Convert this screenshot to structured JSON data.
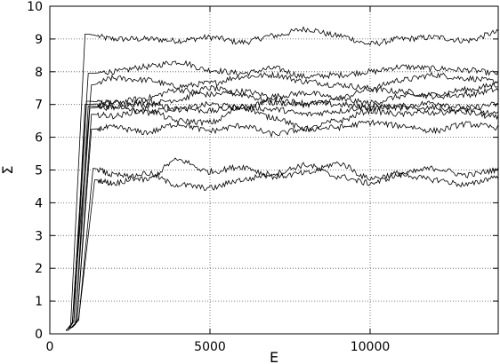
{
  "chart_data": {
    "type": "line",
    "title": "",
    "xlabel": "E",
    "ylabel": "Σ",
    "xlim": [
      0,
      14000
    ],
    "ylim": [
      0,
      10
    ],
    "xticks": [
      0,
      5000,
      10000
    ],
    "xtick_labels": [
      "0",
      "5000",
      "10000"
    ],
    "yticks": [
      0,
      1,
      2,
      3,
      4,
      5,
      6,
      7,
      8,
      9,
      10
    ],
    "ytick_labels": [
      "0",
      "1",
      "2",
      "3",
      "4",
      "5",
      "6",
      "7",
      "8",
      "9",
      "10"
    ],
    "grid": true,
    "grid_style": "dotted",
    "legend": "none",
    "line_color": "#000000",
    "series": [
      {
        "x": [
          500,
          650,
          1100,
          2000,
          3000,
          4000,
          5000,
          6000,
          7000,
          8000,
          9000,
          10000,
          11000,
          12000,
          13000,
          14000
        ],
        "values": [
          0.1,
          0.25,
          9.15,
          9.0,
          9.0,
          8.95,
          9.05,
          8.9,
          9.1,
          9.3,
          9.1,
          8.85,
          9.0,
          9.05,
          8.95,
          9.2
        ]
      },
      {
        "x": [
          500,
          700,
          1200,
          2000,
          3000,
          4000,
          5000,
          6000,
          7000,
          8000,
          9000,
          10000,
          11000,
          12000,
          13000,
          14000
        ],
        "values": [
          0.12,
          0.3,
          7.95,
          8.0,
          8.15,
          8.3,
          8.05,
          7.95,
          8.1,
          7.85,
          7.9,
          8.0,
          8.15,
          8.1,
          8.05,
          7.95
        ]
      },
      {
        "x": [
          550,
          700,
          1300,
          2000,
          3000,
          4000,
          5000,
          6000,
          7000,
          8000,
          9000,
          10000,
          11000,
          12000,
          13000,
          14000
        ],
        "values": [
          0.15,
          0.3,
          7.6,
          7.8,
          7.75,
          7.55,
          7.65,
          7.85,
          7.9,
          7.7,
          7.6,
          7.5,
          7.75,
          7.9,
          7.8,
          7.7
        ]
      },
      {
        "x": [
          550,
          750,
          1100,
          2000,
          3000,
          4000,
          5000,
          6000,
          7000,
          8000,
          9000,
          10000,
          11000,
          12000,
          13000,
          14000
        ],
        "values": [
          0.1,
          0.35,
          7.0,
          7.05,
          7.2,
          7.45,
          7.3,
          7.4,
          7.25,
          7.35,
          7.2,
          7.45,
          7.4,
          7.25,
          7.3,
          7.45
        ]
      },
      {
        "x": [
          600,
          750,
          1150,
          2000,
          3000,
          4000,
          5000,
          6000,
          7000,
          8000,
          9000,
          10000,
          11000,
          12000,
          13000,
          14000
        ],
        "values": [
          0.2,
          0.4,
          7.1,
          7.05,
          7.0,
          7.15,
          7.5,
          7.3,
          7.05,
          7.0,
          7.15,
          7.05,
          7.25,
          7.3,
          7.45,
          7.6
        ]
      },
      {
        "x": [
          600,
          800,
          1200,
          2000,
          3000,
          4000,
          5000,
          6000,
          7000,
          8000,
          9000,
          10000,
          11000,
          12000,
          13000,
          14000
        ],
        "values": [
          0.15,
          0.3,
          6.95,
          6.9,
          7.1,
          6.85,
          7.0,
          6.9,
          7.15,
          7.05,
          7.0,
          6.9,
          6.95,
          7.05,
          6.9,
          7.0
        ]
      },
      {
        "x": [
          650,
          800,
          1250,
          2000,
          3000,
          4000,
          5000,
          6000,
          7000,
          8000,
          9000,
          10000,
          11000,
          12000,
          13000,
          14000
        ],
        "values": [
          0.2,
          0.3,
          6.9,
          6.95,
          6.75,
          6.9,
          6.8,
          6.95,
          6.85,
          6.7,
          6.8,
          6.95,
          6.9,
          6.75,
          6.85,
          6.7
        ]
      },
      {
        "x": [
          650,
          850,
          1300,
          2000,
          3000,
          4000,
          5000,
          6000,
          7000,
          8000,
          9000,
          10000,
          11000,
          12000,
          13000,
          14000
        ],
        "values": [
          0.18,
          0.35,
          6.7,
          6.65,
          6.85,
          6.5,
          6.45,
          6.9,
          6.6,
          6.25,
          6.5,
          6.8,
          6.7,
          6.9,
          6.75,
          6.6
        ]
      },
      {
        "x": [
          700,
          850,
          1300,
          2000,
          3000,
          4000,
          5000,
          6000,
          7000,
          8000,
          9000,
          10000,
          11000,
          12000,
          13000,
          14000
        ],
        "values": [
          0.2,
          0.4,
          6.25,
          6.3,
          6.15,
          6.4,
          6.2,
          6.35,
          6.1,
          6.25,
          6.3,
          6.45,
          6.35,
          6.2,
          6.4,
          6.3
        ]
      },
      {
        "x": [
          700,
          900,
          1350,
          2000,
          3000,
          4000,
          5000,
          6000,
          7000,
          8000,
          9000,
          10000,
          11000,
          12000,
          13000,
          14000
        ],
        "values": [
          0.22,
          0.4,
          5.05,
          4.85,
          4.7,
          5.3,
          4.95,
          5.1,
          4.8,
          4.9,
          5.2,
          4.75,
          4.9,
          5.05,
          4.85,
          5.0
        ]
      },
      {
        "x": [
          750,
          900,
          1400,
          2000,
          3000,
          4000,
          5000,
          6000,
          7000,
          8000,
          9000,
          10000,
          11000,
          12000,
          13000,
          14000
        ],
        "values": [
          0.25,
          0.45,
          4.7,
          4.6,
          4.9,
          4.55,
          4.45,
          4.7,
          4.9,
          5.15,
          4.8,
          4.6,
          4.85,
          4.7,
          4.55,
          4.8
        ]
      }
    ]
  }
}
